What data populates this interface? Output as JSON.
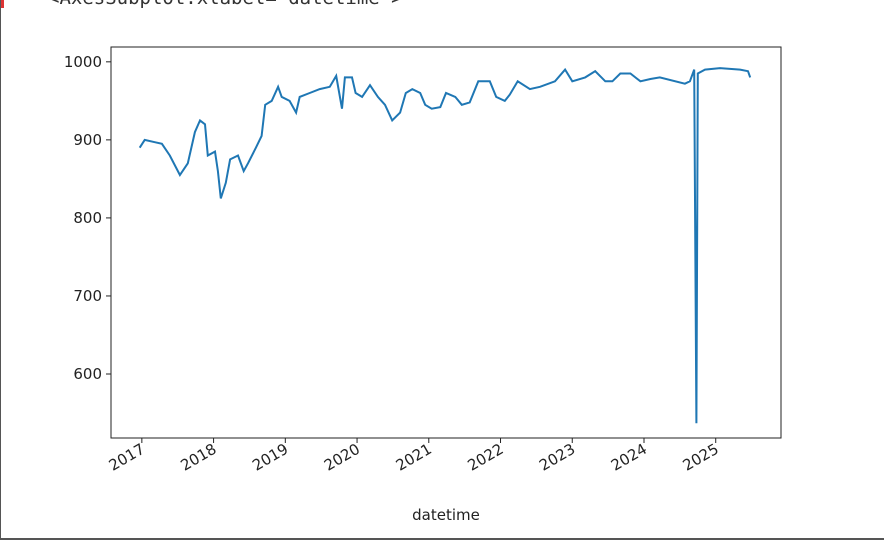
{
  "output_text": "<AxesSubplot:xlabel='datetime'>",
  "chart_data": {
    "type": "line",
    "xlabel": "datetime",
    "color": "#1f77b4",
    "x": [
      2016.97,
      2017.04,
      2017.18,
      2017.28,
      2017.39,
      2017.53,
      2017.64,
      2017.74,
      2017.81,
      2017.88,
      2017.92,
      2018.02,
      2018.06,
      2018.1,
      2018.17,
      2018.23,
      2018.34,
      2018.42,
      2018.48,
      2018.59,
      2018.67,
      2018.72,
      2018.81,
      2018.9,
      2018.95,
      2019.06,
      2019.15,
      2019.2,
      2019.34,
      2019.48,
      2019.62,
      2019.71,
      2019.79,
      2019.83,
      2019.93,
      2019.98,
      2020.07,
      2020.18,
      2020.29,
      2020.39,
      2020.49,
      2020.6,
      2020.68,
      2020.77,
      2020.88,
      2020.95,
      2021.04,
      2021.16,
      2021.24,
      2021.37,
      2021.46,
      2021.57,
      2021.69,
      2021.85,
      2021.94,
      2022.06,
      2022.13,
      2022.24,
      2022.41,
      2022.55,
      2022.76,
      2022.9,
      2023.0,
      2023.18,
      2023.32,
      2023.46,
      2023.56,
      2023.67,
      2023.81,
      2023.95,
      2024.09,
      2024.22,
      2024.57,
      2024.64,
      2024.7,
      2024.73,
      2024.75,
      2024.85,
      2025.06,
      2025.34,
      2025.45,
      2025.48
    ],
    "values": [
      890,
      900,
      897,
      895,
      880,
      855,
      870,
      910,
      925,
      920,
      880,
      885,
      860,
      825,
      845,
      875,
      880,
      860,
      870,
      890,
      905,
      945,
      950,
      968,
      955,
      950,
      935,
      955,
      960,
      965,
      968,
      982,
      940,
      980,
      980,
      960,
      955,
      970,
      955,
      945,
      925,
      935,
      960,
      965,
      960,
      945,
      940,
      942,
      960,
      955,
      945,
      948,
      975,
      975,
      955,
      950,
      958,
      975,
      965,
      968,
      975,
      990,
      975,
      980,
      988,
      975,
      975,
      985,
      985,
      975,
      978,
      980,
      972,
      975,
      990,
      537,
      985,
      990,
      992,
      990,
      988,
      980
    ],
    "xlim": [
      2016.57,
      2025.91
    ],
    "ylim": [
      518,
      1019
    ],
    "xticks": [
      2017,
      2018,
      2019,
      2020,
      2021,
      2022,
      2023,
      2024,
      2025
    ],
    "yticks": [
      600,
      700,
      800,
      900,
      1000
    ]
  }
}
